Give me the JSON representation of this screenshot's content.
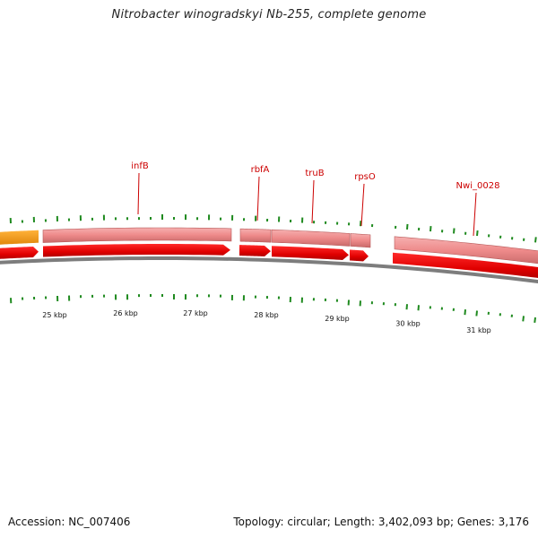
{
  "title": "Nitrobacter winogradskyi Nb-255, complete genome",
  "footer": {
    "accession": "Accession: NC_007406",
    "summary": "Topology: circular; Length: 3,402,093 bp; Genes: 3,176"
  },
  "colors": {
    "cds_forward": "#ee0000",
    "gene_band": "#f08a8a",
    "rna_gene": "#f39a1b",
    "backbone": "#7a7a7a",
    "gc_tick": "#1f8a1f",
    "label": "#cc0000"
  },
  "scale_labels": [
    "25 kbp",
    "26 kbp",
    "27 kbp",
    "28 kbp",
    "29 kbp",
    "30 kbp",
    "31 kbp"
  ],
  "gene_labels": [
    "infB",
    "rbfA",
    "truB",
    "rpsO",
    "Nwi_0028"
  ]
}
